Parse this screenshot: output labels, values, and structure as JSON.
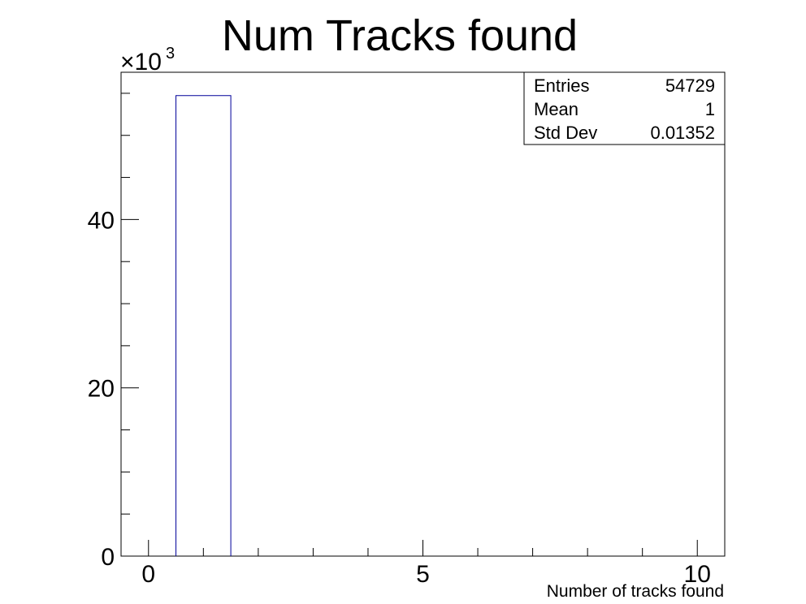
{
  "chart_data": {
    "type": "bar",
    "title": "Num Tracks found",
    "xlabel": "Number of tracks found",
    "ylabel": "",
    "y_multiplier": "×10",
    "y_multiplier_exp": "3",
    "xlim": [
      -0.5,
      10.5
    ],
    "ylim": [
      0,
      57.5
    ],
    "bin_edges": [
      0.5,
      1.5
    ],
    "values": [
      54.729
    ],
    "x_ticks": [
      {
        "value": 0,
        "label": "0"
      },
      {
        "value": 5,
        "label": "5"
      },
      {
        "value": 10,
        "label": "10"
      }
    ],
    "y_ticks": [
      {
        "value": 0,
        "label": "0"
      },
      {
        "value": 20,
        "label": "20"
      },
      {
        "value": 40,
        "label": "40"
      }
    ],
    "x_minor_step": 1,
    "y_minor_step": 5,
    "grid": false,
    "line_color": "#000099",
    "stats_box": {
      "position": "top-right",
      "rows": [
        {
          "label": "Entries",
          "value": "54729"
        },
        {
          "label": "Mean",
          "value": "1"
        },
        {
          "label": "Std Dev",
          "value": "0.01352"
        }
      ]
    }
  }
}
